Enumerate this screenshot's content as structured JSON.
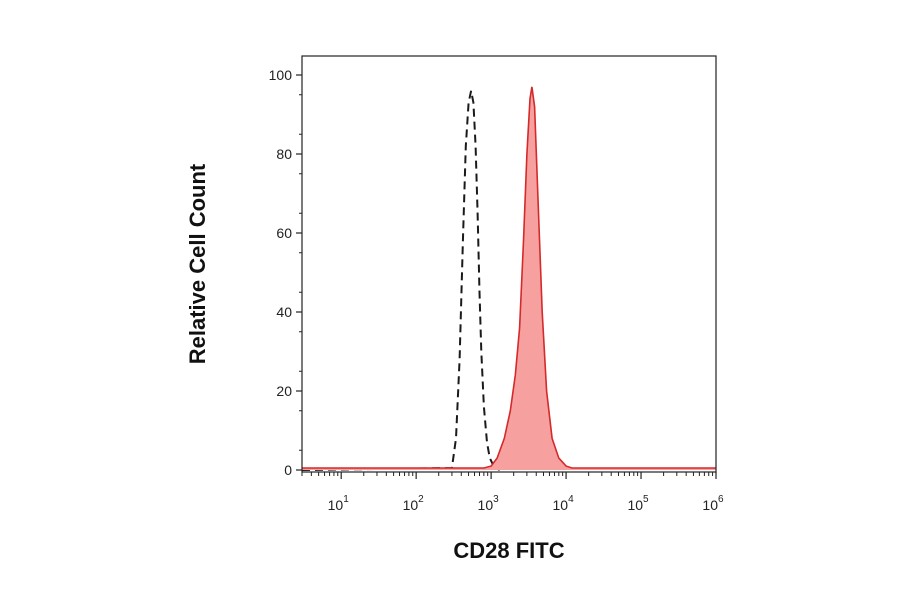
{
  "chart_data": {
    "type": "area",
    "title": "",
    "xlabel": "CD28 FITC",
    "ylabel": "Relative Cell Count",
    "xscale": "log",
    "xlim": [
      3,
      1000000
    ],
    "ylim": [
      0,
      100
    ],
    "grid": false,
    "legend": "none",
    "y_ticks": [
      0,
      20,
      40,
      60,
      80,
      100
    ],
    "y_tick_labels": [
      "0",
      "20",
      "40",
      "60",
      "80",
      "100"
    ],
    "x_ticks": [
      {
        "value": 10,
        "base": "10",
        "exp": "1"
      },
      {
        "value": 100,
        "base": "10",
        "exp": "2"
      },
      {
        "value": 1000,
        "base": "10",
        "exp": "3"
      },
      {
        "value": 10000,
        "base": "10",
        "exp": "4"
      },
      {
        "value": 100000,
        "base": "10",
        "exp": "5"
      },
      {
        "value": 1000000,
        "base": "10",
        "exp": "6"
      }
    ],
    "series": [
      {
        "style": "dashed-line",
        "color": "#1a1a1a",
        "x": [
          3,
          300,
          340,
          380,
          420,
          460,
          500,
          540,
          580,
          620,
          660,
          700,
          740,
          800,
          880,
          960,
          1050,
          1150,
          1300
        ],
        "y": [
          0,
          0.5,
          8,
          28,
          58,
          82,
          93,
          96,
          93,
          82,
          65,
          45,
          30,
          16,
          7,
          3,
          1.5,
          0.5,
          0
        ]
      },
      {
        "style": "filled",
        "color": "#d42a2a",
        "fill": "#f7a0a0",
        "x": [
          3,
          800,
          1000,
          1200,
          1500,
          1800,
          2100,
          2400,
          2700,
          3000,
          3300,
          3500,
          3800,
          4200,
          4800,
          5500,
          6500,
          8000,
          10000,
          12000,
          1000000
        ],
        "y": [
          0.5,
          0.5,
          1,
          3,
          8,
          15,
          24,
          36,
          58,
          80,
          94,
          97,
          92,
          70,
          40,
          20,
          8,
          3,
          1,
          0.5,
          0.5
        ]
      }
    ]
  }
}
